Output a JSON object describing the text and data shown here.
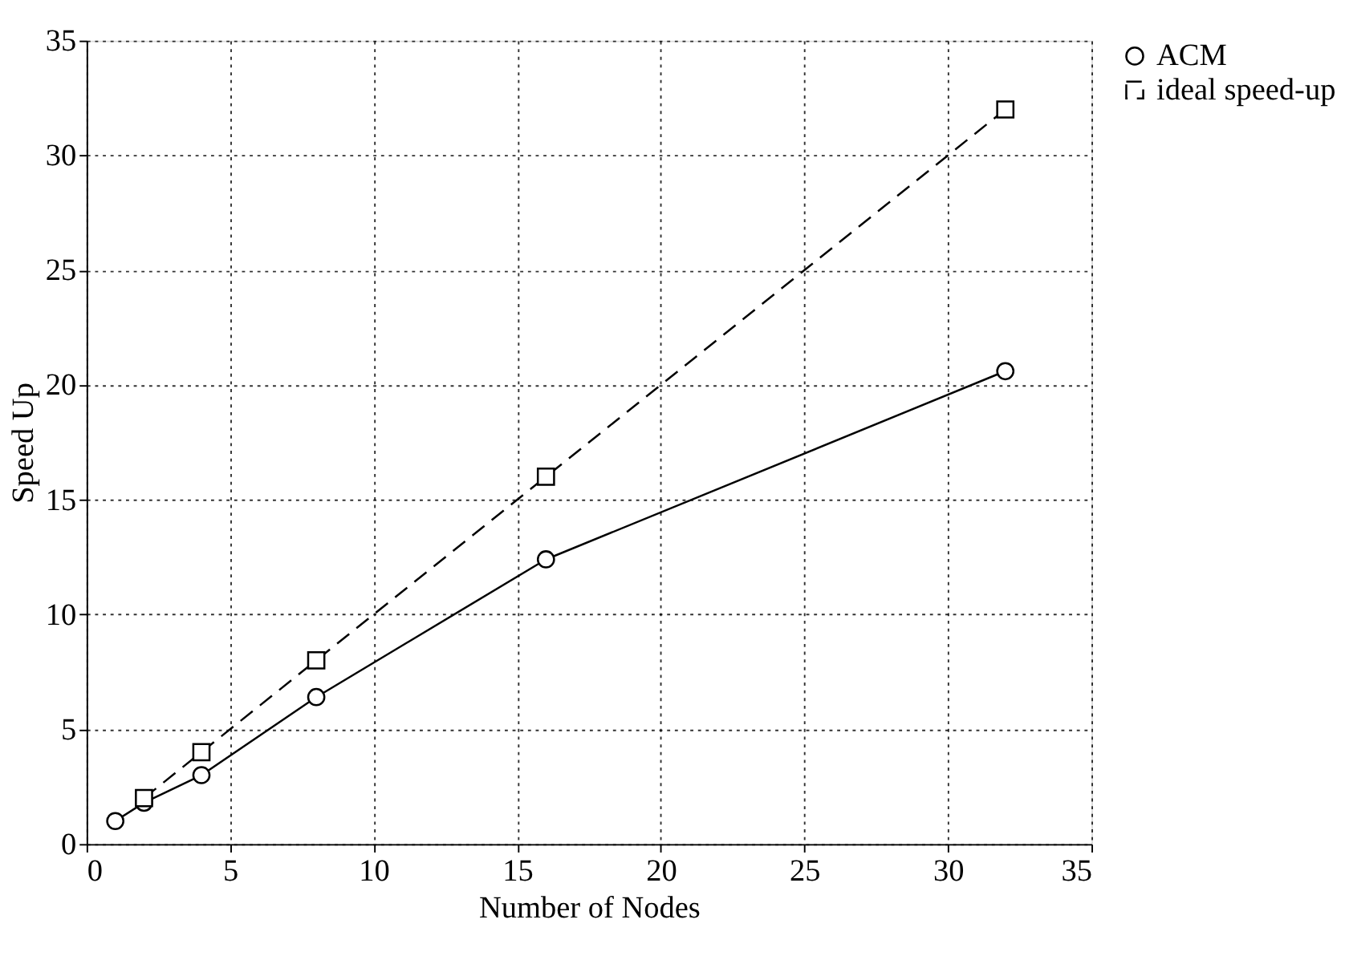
{
  "chart_data": {
    "type": "line",
    "xlabel": "Number of Nodes",
    "ylabel": "Speed Up",
    "series": [
      {
        "name": "ACM",
        "color": "#000000",
        "line_style": "solid",
        "marker": "circle",
        "x": [
          1,
          2,
          4,
          8,
          16,
          32
        ],
        "values": [
          1,
          1.8,
          3,
          6.4,
          12.4,
          20.6
        ]
      },
      {
        "name": "ideal speed-up",
        "color": "#000000",
        "line_style": "dashed",
        "marker": "square",
        "x": [
          2,
          4,
          8,
          16,
          32
        ],
        "values": [
          2,
          4,
          8,
          16,
          32
        ]
      }
    ],
    "xlim": [
      0,
      35
    ],
    "xticks": [
      0,
      5,
      10,
      15,
      20,
      25,
      30,
      35
    ],
    "ylim": [
      0,
      35
    ],
    "yticks": [
      0,
      5,
      10,
      15,
      20,
      25,
      30,
      35
    ],
    "grid": true,
    "legend": "right"
  }
}
